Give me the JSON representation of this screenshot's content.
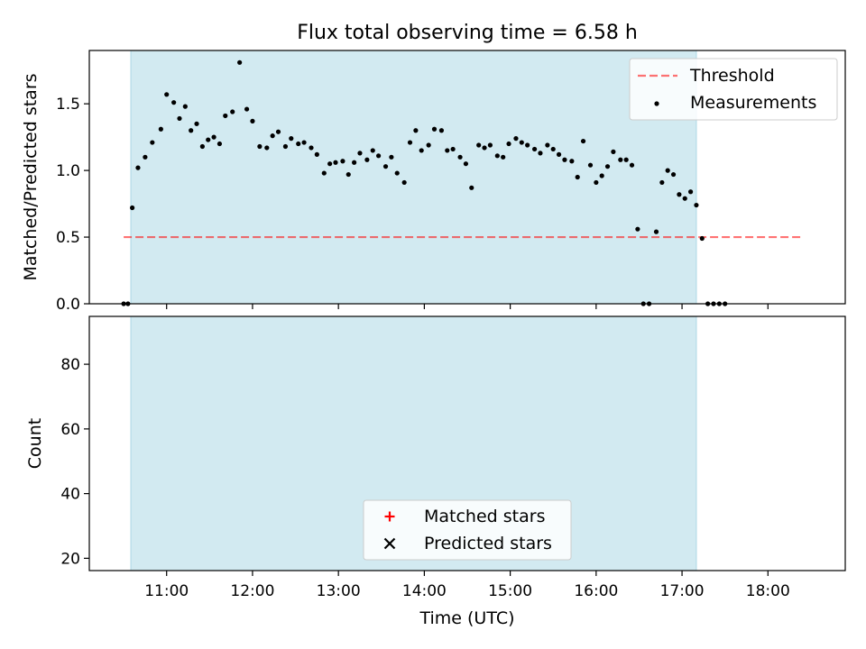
{
  "title": "Flux total observing time = 6.58 h",
  "colors": {
    "shade": "#add8e6",
    "threshold": "#ff0000",
    "measurements": "#000000",
    "matched": "#ff0000",
    "predicted": "#000000"
  },
  "chart_data": [
    {
      "type": "scatter",
      "ylabel": "Matched/Predicted stars",
      "ylim": [
        0,
        1.9
      ],
      "yticks": [
        0.0,
        0.5,
        1.0,
        1.5
      ],
      "ytick_labels": [
        "0.0",
        "0.5",
        "1.0",
        "1.5"
      ],
      "xlim": [
        "10:06",
        "18:54"
      ],
      "observing_window": [
        "10:35",
        "17:10"
      ],
      "legend": {
        "placement": "top-right",
        "entries": [
          "Threshold",
          "Measurements"
        ]
      },
      "threshold": {
        "name": "Threshold",
        "value": 0.5,
        "x_range": [
          "10:30",
          "18:25"
        ]
      },
      "series": [
        {
          "name": "Measurements",
          "points": [
            [
              "10:30",
              0.0
            ],
            [
              "10:33",
              0.0
            ],
            [
              "10:36",
              0.72
            ],
            [
              "10:40",
              1.02
            ],
            [
              "10:45",
              1.1
            ],
            [
              "10:50",
              1.21
            ],
            [
              "10:56",
              1.31
            ],
            [
              "11:00",
              1.57
            ],
            [
              "11:05",
              1.51
            ],
            [
              "11:09",
              1.39
            ],
            [
              "11:13",
              1.48
            ],
            [
              "11:17",
              1.3
            ],
            [
              "11:21",
              1.35
            ],
            [
              "11:25",
              1.18
            ],
            [
              "11:29",
              1.23
            ],
            [
              "11:33",
              1.25
            ],
            [
              "11:37",
              1.2
            ],
            [
              "11:41",
              1.41
            ],
            [
              "11:46",
              1.44
            ],
            [
              "11:51",
              1.81
            ],
            [
              "11:56",
              1.46
            ],
            [
              "12:00",
              1.37
            ],
            [
              "12:05",
              1.18
            ],
            [
              "12:10",
              1.17
            ],
            [
              "12:14",
              1.26
            ],
            [
              "12:18",
              1.29
            ],
            [
              "12:23",
              1.18
            ],
            [
              "12:27",
              1.24
            ],
            [
              "12:32",
              1.2
            ],
            [
              "12:36",
              1.21
            ],
            [
              "12:41",
              1.17
            ],
            [
              "12:45",
              1.12
            ],
            [
              "12:50",
              0.98
            ],
            [
              "12:54",
              1.05
            ],
            [
              "12:58",
              1.06
            ],
            [
              "13:03",
              1.07
            ],
            [
              "13:07",
              0.97
            ],
            [
              "13:11",
              1.06
            ],
            [
              "13:15",
              1.13
            ],
            [
              "13:20",
              1.08
            ],
            [
              "13:24",
              1.15
            ],
            [
              "13:28",
              1.11
            ],
            [
              "13:33",
              1.03
            ],
            [
              "13:37",
              1.1
            ],
            [
              "13:41",
              0.98
            ],
            [
              "13:46",
              0.91
            ],
            [
              "13:50",
              1.21
            ],
            [
              "13:54",
              1.3
            ],
            [
              "13:58",
              1.15
            ],
            [
              "14:03",
              1.19
            ],
            [
              "14:07",
              1.31
            ],
            [
              "14:12",
              1.3
            ],
            [
              "14:16",
              1.15
            ],
            [
              "14:20",
              1.16
            ],
            [
              "14:25",
              1.1
            ],
            [
              "14:29",
              1.05
            ],
            [
              "14:33",
              0.87
            ],
            [
              "14:38",
              1.19
            ],
            [
              "14:42",
              1.17
            ],
            [
              "14:46",
              1.19
            ],
            [
              "14:51",
              1.11
            ],
            [
              "14:55",
              1.1
            ],
            [
              "14:59",
              1.2
            ],
            [
              "15:04",
              1.24
            ],
            [
              "15:08",
              1.21
            ],
            [
              "15:12",
              1.19
            ],
            [
              "15:17",
              1.16
            ],
            [
              "15:21",
              1.13
            ],
            [
              "15:26",
              1.19
            ],
            [
              "15:30",
              1.16
            ],
            [
              "15:34",
              1.12
            ],
            [
              "15:38",
              1.08
            ],
            [
              "15:43",
              1.07
            ],
            [
              "15:47",
              0.95
            ],
            [
              "15:51",
              1.22
            ],
            [
              "15:56",
              1.04
            ],
            [
              "16:00",
              0.91
            ],
            [
              "16:04",
              0.96
            ],
            [
              "16:08",
              1.03
            ],
            [
              "16:12",
              1.14
            ],
            [
              "16:17",
              1.08
            ],
            [
              "16:21",
              1.08
            ],
            [
              "16:25",
              1.04
            ],
            [
              "16:29",
              0.56
            ],
            [
              "16:33",
              0.0
            ],
            [
              "16:37",
              0.0
            ],
            [
              "16:42",
              0.54
            ],
            [
              "16:46",
              0.91
            ],
            [
              "16:50",
              1.0
            ],
            [
              "16:54",
              0.97
            ],
            [
              "16:58",
              0.82
            ],
            [
              "17:02",
              0.79
            ],
            [
              "17:06",
              0.84
            ],
            [
              "17:10",
              0.74
            ],
            [
              "17:14",
              0.49
            ],
            [
              "17:18",
              0.0
            ],
            [
              "17:22",
              0.0
            ],
            [
              "17:26",
              0.0
            ],
            [
              "17:30",
              0.0
            ]
          ]
        }
      ]
    },
    {
      "type": "scatter",
      "ylabel": "Count",
      "xlabel": "Time (UTC)",
      "ylim": [
        16.2,
        94.8
      ],
      "yticks": [
        20,
        40,
        60,
        80
      ],
      "ytick_labels": [
        "20",
        "40",
        "60",
        "80"
      ],
      "xlim": [
        "10:06",
        "18:54"
      ],
      "xticks": [
        "11:00",
        "12:00",
        "13:00",
        "14:00",
        "15:00",
        "16:00",
        "17:00",
        "18:00"
      ],
      "observing_window": [
        "10:35",
        "17:10"
      ],
      "legend": {
        "placement": "bottom-center",
        "entries": [
          "Matched stars",
          "Predicted stars"
        ]
      },
      "series": [
        {
          "name": "Matched stars",
          "marker": "plus",
          "points": []
        },
        {
          "name": "Predicted stars",
          "marker": "x",
          "points": []
        }
      ]
    }
  ]
}
